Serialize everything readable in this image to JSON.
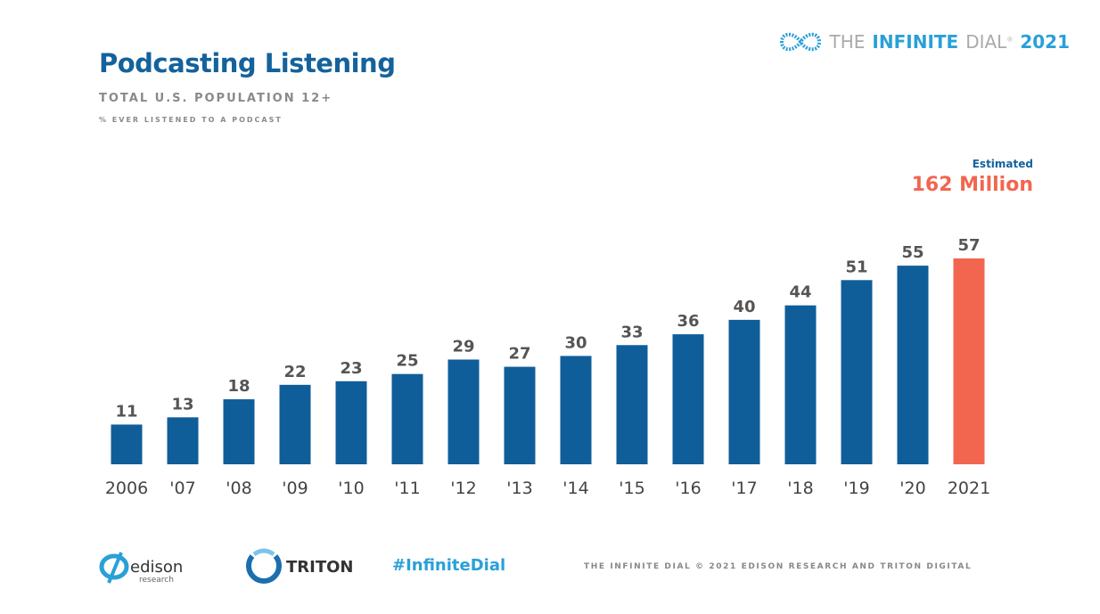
{
  "header": {
    "title": "Podcasting Listening",
    "subtitle": "TOTAL U.S. POPULATION 12+",
    "measure": "% EVER LISTENED TO A PODCAST"
  },
  "brand": {
    "prefix": "THE",
    "name": "INFINITE",
    "suffix": "DIAL",
    "reg": "®",
    "year": "2021"
  },
  "estimate": {
    "label": "Estimated",
    "value": "162 Million"
  },
  "chart_data": {
    "type": "bar",
    "categories": [
      "2006",
      "'07",
      "'08",
      "'09",
      "'10",
      "'11",
      "'12",
      "'13",
      "'14",
      "'15",
      "'16",
      "'17",
      "'18",
      "'19",
      "'20",
      "2021"
    ],
    "values": [
      11,
      13,
      18,
      22,
      23,
      25,
      29,
      27,
      30,
      33,
      36,
      40,
      44,
      51,
      55,
      57
    ],
    "data_labels": [
      "11",
      "13",
      "18",
      "22",
      "23",
      "25",
      "29",
      "27",
      "30",
      "33",
      "36",
      "40",
      "44",
      "51",
      "55",
      "57"
    ],
    "colors": {
      "default": "#0f5e99",
      "highlight": "#f2664f"
    },
    "highlight_index": 15,
    "ylim": [
      0,
      60
    ],
    "grid": false
  },
  "footer": {
    "edison": "edison",
    "edison_sub": "research",
    "triton": "TRITON",
    "hashtag": "#InfiniteDial",
    "copyright": "THE INFINITE DIAL   © 2021 EDISON RESEARCH AND TRITON DIGITAL"
  }
}
